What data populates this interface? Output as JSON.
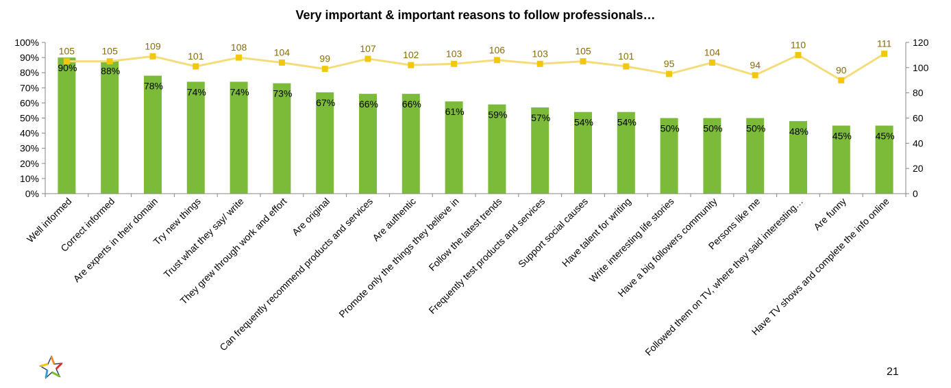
{
  "page": {
    "number": "21"
  },
  "logo": {
    "icon": "star-burst-logo-icon"
  },
  "chart_data": {
    "type": "bar",
    "title": "Very important & important reasons to follow professionals…",
    "categories": [
      "Well informed",
      "Correct informed",
      "Are experts in their domain",
      "Try new things",
      "Trust what they say/ write",
      "They grew through work and effort",
      "Are original",
      "Can frequently recommend products and services",
      "Are authentic",
      "Promote only the things they believe in",
      "Follow the latest trends",
      "Frequently test products and services",
      "Support social causes",
      "Have talent for writing",
      "Write interesting life stories",
      "Have a big followers community",
      "Persons like me",
      "Followed them on TV, where they said interesting…",
      "Are funny",
      "Have TV shows and complete the info online"
    ],
    "series": [
      {
        "type": "bar",
        "axis": "left",
        "color": "#7cba3a",
        "values": [
          90,
          88,
          78,
          74,
          74,
          73,
          67,
          66,
          66,
          61,
          59,
          57,
          54,
          54,
          50,
          50,
          50,
          48,
          45,
          45
        ],
        "labels": [
          "90%",
          "88%",
          "78%",
          "74%",
          "74%",
          "73%",
          "67%",
          "66%",
          "66%",
          "61%",
          "59%",
          "57%",
          "54%",
          "54%",
          "50%",
          "50%",
          "50%",
          "48%",
          "45%",
          "45%"
        ]
      },
      {
        "type": "line",
        "axis": "right",
        "color": "#f5dc7a",
        "marker_color": "#f2c80f",
        "label_color": "#8a6b0a",
        "values": [
          105,
          105,
          109,
          101,
          108,
          104,
          99,
          107,
          102,
          103,
          106,
          103,
          105,
          101,
          95,
          104,
          94,
          110,
          90,
          111
        ]
      }
    ],
    "y_left": {
      "min": 0,
      "max": 100,
      "ticks": [
        "0%",
        "10%",
        "20%",
        "30%",
        "40%",
        "50%",
        "60%",
        "70%",
        "80%",
        "90%",
        "100%"
      ]
    },
    "y_right": {
      "min": 0,
      "max": 120,
      "ticks": [
        "0",
        "20",
        "40",
        "60",
        "80",
        "100",
        "120"
      ]
    },
    "grid": false,
    "legend": "none"
  }
}
